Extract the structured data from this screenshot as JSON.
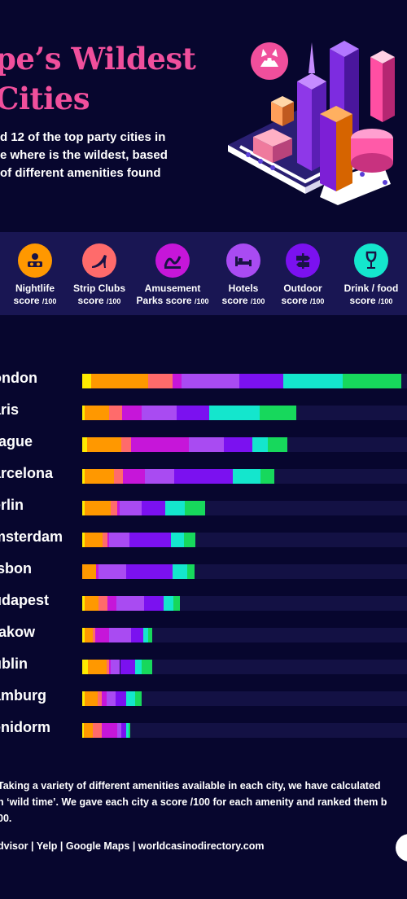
{
  "header": {
    "title_lines": [
      "pe’s Wildest",
      "Cities"
    ],
    "intro_lines": [
      "d 12 of the top party cities in",
      "e where is the wildest, based",
      "of different amenities found"
    ]
  },
  "legend": [
    {
      "label_line1": "Nightlife",
      "label_line2": "score",
      "unit": "/100",
      "color": "#ff9800",
      "icon": "dj-icon"
    },
    {
      "label_line1": "Strip Clubs",
      "label_line2": "score",
      "unit": "/100",
      "color": "#ff6b6b",
      "icon": "high-heel-icon"
    },
    {
      "label_line1": "Amusement",
      "label_line2": "Parks score",
      "unit": "/100",
      "color": "#c616d9",
      "icon": "rollercoaster-icon"
    },
    {
      "label_line1": "Hotels",
      "label_line2": "score",
      "unit": "/100",
      "color": "#a94bf2",
      "icon": "bed-icon"
    },
    {
      "label_line1": "Outdoor",
      "label_line2": "score",
      "unit": "/100",
      "color": "#7b11f0",
      "icon": "signpost-icon"
    },
    {
      "label_line1": "Drink / food",
      "label_line2": "score",
      "unit": "/100",
      "color": "#14e6cd",
      "icon": "wine-glass-icon"
    }
  ],
  "chart_data": {
    "type": "bar",
    "stacked": true,
    "orientation": "horizontal",
    "categories": [
      "ondon",
      "aris",
      "rague",
      "arcelona",
      "erlin",
      "msterdam",
      "isbon",
      "udapest",
      "rakow",
      "ublin",
      "amburg",
      "enidorm"
    ],
    "series": [
      {
        "key": "s1",
        "color": "#ffea00",
        "values": [
          12,
          3,
          6,
          3,
          3,
          3,
          0,
          3,
          3,
          8,
          3,
          2
        ]
      },
      {
        "key": "s2",
        "color": "#ff9800",
        "values": [
          75,
          32,
          46,
          39,
          35,
          24,
          18,
          18,
          11,
          24,
          17,
          12
        ]
      },
      {
        "key": "s3",
        "color": "#ff6b6b",
        "values": [
          32,
          18,
          12,
          12,
          8,
          6,
          0,
          12,
          3,
          3,
          6,
          12
        ]
      },
      {
        "key": "s4",
        "color": "#c616d9",
        "values": [
          12,
          26,
          77,
          29,
          3,
          3,
          3,
          12,
          18,
          3,
          6,
          20
        ]
      },
      {
        "key": "s5",
        "color": "#a94bf2",
        "values": [
          77,
          46,
          46,
          39,
          29,
          26,
          37,
          37,
          29,
          12,
          12,
          6
        ]
      },
      {
        "key": "s6",
        "color": "#7b11f0",
        "values": [
          58,
          43,
          38,
          77,
          32,
          55,
          61,
          26,
          17,
          20,
          14,
          6
        ]
      },
      {
        "key": "s7",
        "color": "#14e6cd",
        "values": [
          78,
          66,
          20,
          37,
          26,
          17,
          20,
          12,
          6,
          8,
          12,
          3
        ]
      },
      {
        "key": "s8",
        "color": "#17d85c",
        "values": [
          78,
          49,
          26,
          18,
          26,
          15,
          9,
          9,
          6,
          15,
          9,
          2
        ]
      }
    ]
  },
  "footer": {
    "method_lines": [
      "Taking a variety of different amenities available in each city, we have calculated",
      "n ‘wild time’. We gave each city a score /100 for each amenity and ranked them b",
      "00."
    ],
    "sources": "dvisor | Yelp | Google Maps | worldcasinodirectory.com"
  }
}
